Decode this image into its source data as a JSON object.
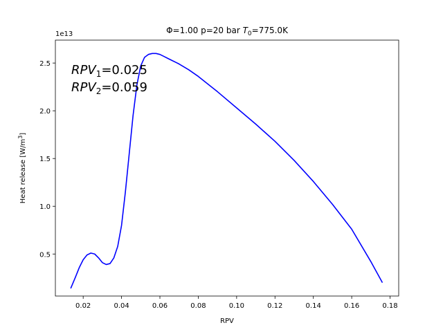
{
  "chart_data": {
    "type": "line",
    "title": {
      "prefix": "Φ=1.00 p=20 bar ",
      "var": "T",
      "sub": "0",
      "suffix": "=775.0K"
    },
    "xlabel": "RPV",
    "ylabel": {
      "main": "Heat release [W/m",
      "sup": "3",
      "tail": "]"
    },
    "y_offset_text": "1e13",
    "xlim": [
      0.0055,
      0.1845
    ],
    "ylim": [
      0.06,
      2.74
    ],
    "x_ticks": [
      0.02,
      0.04,
      0.06,
      0.08,
      0.1,
      0.12,
      0.14,
      0.16,
      0.18
    ],
    "x_tick_labels": [
      "0.02",
      "0.04",
      "0.06",
      "0.08",
      "0.10",
      "0.12",
      "0.14",
      "0.16",
      "0.18"
    ],
    "y_ticks": [
      0.5,
      1.0,
      1.5,
      2.0,
      2.5
    ],
    "y_tick_labels": [
      "0.5",
      "1.0",
      "1.5",
      "2.0",
      "2.5"
    ],
    "grid": false,
    "series": [
      {
        "color": "#0000ff",
        "x": [
          0.0135,
          0.016,
          0.018,
          0.02,
          0.022,
          0.024,
          0.026,
          0.028,
          0.03,
          0.032,
          0.034,
          0.036,
          0.038,
          0.04,
          0.042,
          0.044,
          0.046,
          0.048,
          0.05,
          0.052,
          0.054,
          0.056,
          0.058,
          0.06,
          0.062,
          0.064,
          0.066,
          0.07,
          0.075,
          0.08,
          0.09,
          0.1,
          0.11,
          0.12,
          0.13,
          0.14,
          0.15,
          0.16,
          0.17,
          0.176
        ],
        "y": [
          0.14,
          0.26,
          0.36,
          0.44,
          0.49,
          0.51,
          0.5,
          0.46,
          0.41,
          0.39,
          0.4,
          0.46,
          0.58,
          0.8,
          1.15,
          1.55,
          1.95,
          2.27,
          2.47,
          2.56,
          2.59,
          2.6,
          2.6,
          2.59,
          2.57,
          2.55,
          2.53,
          2.49,
          2.43,
          2.36,
          2.2,
          2.03,
          1.86,
          1.68,
          1.48,
          1.26,
          1.02,
          0.76,
          0.42,
          0.2
        ]
      }
    ],
    "annotations": [
      {
        "var": "RPV",
        "sub": "1",
        "value": "=0.025"
      },
      {
        "var": "RPV",
        "sub": "2",
        "value": "=0.059"
      }
    ]
  }
}
